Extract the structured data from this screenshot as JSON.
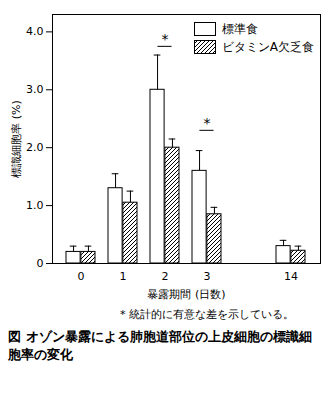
{
  "chart_data": {
    "type": "bar",
    "title": "図 オゾン暴露による肺胞道部位の上皮細胞の標識細胞率の変化",
    "footnote": "* 統計的に有意な差を示している。",
    "x_label": "暴露期間 (日数)",
    "y_label": "標識細胞率 (%)",
    "categories": [
      "0",
      "1",
      "2",
      "3",
      null,
      "14"
    ],
    "series": [
      {
        "name": "標準食",
        "color": "#ffffff",
        "values": [
          0.2,
          1.3,
          3.0,
          1.6,
          null,
          0.3
        ],
        "errors": [
          0.1,
          0.25,
          0.6,
          0.35,
          null,
          0.1
        ]
      },
      {
        "name": "ビタミンA欠乏食",
        "color": "#000000",
        "values": [
          0.2,
          1.05,
          2.0,
          0.85,
          null,
          0.22
        ],
        "errors": [
          0.1,
          0.2,
          0.15,
          0.12,
          null,
          0.08
        ]
      }
    ],
    "ylim": [
      0,
      4.3
    ],
    "yticks": [
      0,
      {
        "value": 1,
        "label": "1.0"
      },
      {
        "value": 2,
        "label": "2.0"
      },
      {
        "value": 3,
        "label": "3.0"
      },
      {
        "value": 4,
        "label": "4.0"
      }
    ],
    "legend": "top-right",
    "annotations": [
      {
        "text": "*",
        "category": "2",
        "y": 3.75
      },
      {
        "text": "*",
        "category": "3",
        "y": 2.3
      }
    ]
  }
}
